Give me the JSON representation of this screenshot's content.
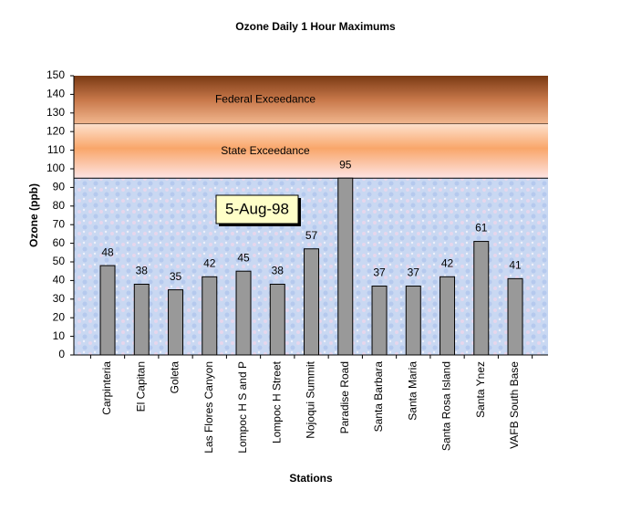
{
  "chart_data": {
    "type": "bar",
    "title": "Ozone Daily 1 Hour Maximums",
    "x_label": "Stations",
    "y_label": "Ozone (ppb)",
    "annotation": "5-Aug-98",
    "categories": [
      "Carpinteria",
      "El Capitan",
      "Goleta",
      "Las Flores Canyon",
      "Lompoc H S and P",
      "Lompoc H Street",
      "Nojoqui Summit",
      "Paradise Road",
      "Santa Barbara",
      "Santa Maria",
      "Santa Rosa Island",
      "Santa Ynez",
      "VAFB South Base"
    ],
    "values": [
      48,
      38,
      35,
      42,
      45,
      38,
      57,
      95,
      37,
      37,
      42,
      61,
      41
    ],
    "color": "#999999",
    "bands": [
      {
        "label": "Federal Exceedance",
        "from": 124,
        "to": 150
      },
      {
        "label": "State Exceedance",
        "from": 95,
        "to": 124
      }
    ],
    "ylim": [
      0,
      150
    ],
    "yticks": [
      0,
      10,
      20,
      30,
      40,
      50,
      60,
      70,
      80,
      90,
      100,
      110,
      120,
      130,
      140,
      150
    ]
  }
}
